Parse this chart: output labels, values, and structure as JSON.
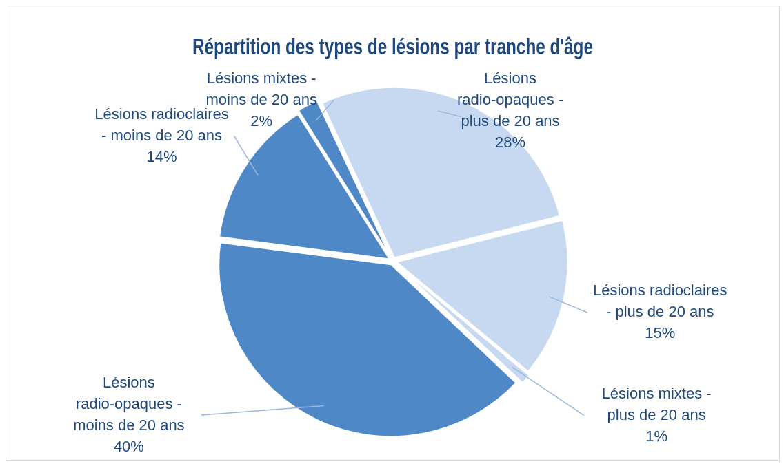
{
  "chart_data": {
    "type": "pie",
    "title": "Répartition des types de lésions par tranche d'âge",
    "categories": [
      "Lésions radio-opaques - plus de 20 ans",
      "Lésions radioclaires  - plus de 20 ans",
      "Lésions mixtes - plus de 20 ans",
      "Lésions radio-opaques - moins de 20 ans",
      "Lésions radioclaires - moins de 20 ans",
      "Lésions mixtes - moins de 20 ans"
    ],
    "values": [
      28,
      15,
      1,
      40,
      14,
      2
    ],
    "value_labels": [
      "28%",
      "15%",
      "1%",
      "40%",
      "14%",
      "2%"
    ],
    "colors": [
      "#c6d9f0",
      "#c6d9f0",
      "#c6d9f0",
      "#4f88c6",
      "#4f88c6",
      "#4f88c6"
    ],
    "legend": false
  }
}
